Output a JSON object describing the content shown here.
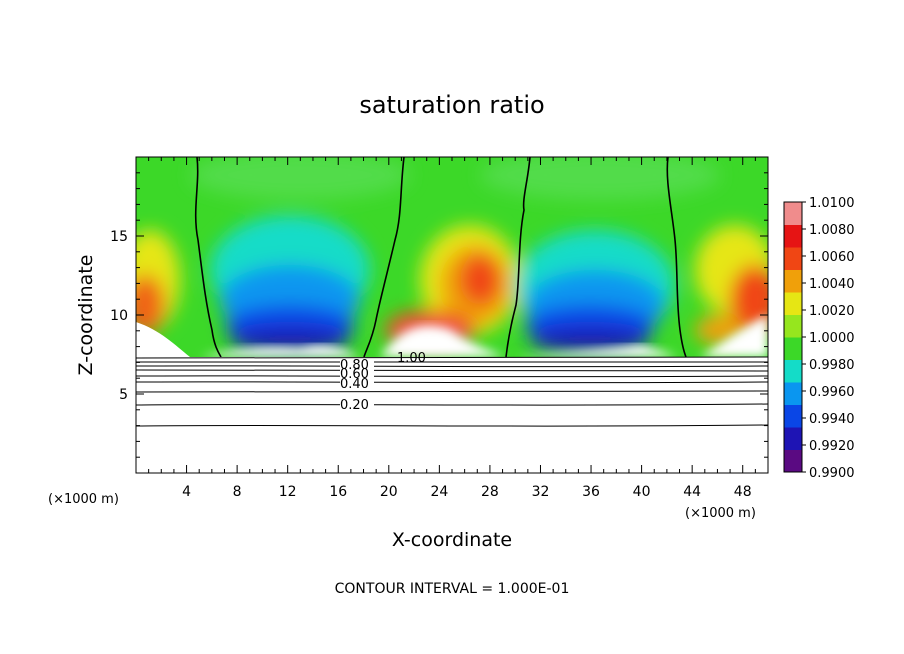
{
  "chart_data": {
    "type": "heatmap",
    "title": "saturation ratio",
    "xlabel": "X-coordinate",
    "ylabel": "Z-coordinate",
    "x_unit": "(×1000 m)",
    "z_unit": "(×1000 m)",
    "xlim": [
      0,
      50
    ],
    "ylim": [
      0,
      20
    ],
    "x_ticks": [
      "4",
      "8",
      "12",
      "16",
      "20",
      "24",
      "28",
      "32",
      "36",
      "40",
      "44",
      "48"
    ],
    "y_ticks": [
      "5",
      "10",
      "15"
    ],
    "colorbar": {
      "range": [
        0.99,
        1.01
      ],
      "labels": [
        "1.0100",
        "1.0080",
        "1.0060",
        "1.0040",
        "1.0020",
        "1.0000",
        "0.9980",
        "0.9960",
        "0.9940",
        "0.9920",
        "0.9900"
      ],
      "colors": [
        "#5a0a82",
        "#1e14b4",
        "#0a46e6",
        "#0a96f0",
        "#14dcc8",
        "#3cd828",
        "#96e61e",
        "#e6e614",
        "#f0a00a",
        "#f04614",
        "#e61414",
        "#f08c8c"
      ]
    },
    "contour_levels_labeled": [
      "0.80",
      "0.60",
      "0.40",
      "0.20",
      "1.00"
    ],
    "contour_interval": "CONTOUR INTERVAL = 1.000E-01",
    "boundary_x_at_cloud_base": [
      5,
      17.5,
      30,
      43
    ]
  }
}
